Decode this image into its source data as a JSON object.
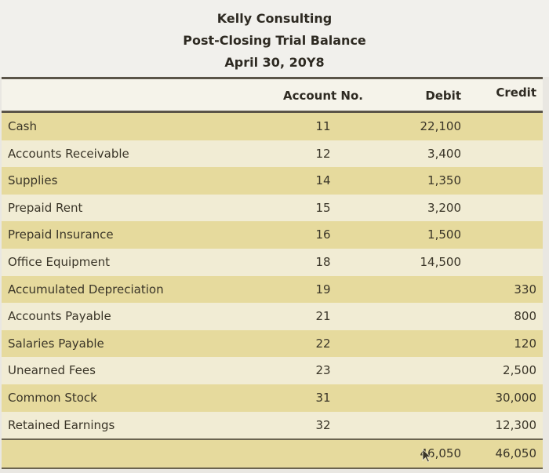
{
  "title": {
    "company": "Kelly Consulting",
    "report": "Post-Closing Trial Balance",
    "date": "April 30, 20Y8"
  },
  "columns": {
    "account_no": "Account No.",
    "debit": "Debit",
    "credit": "Credit"
  },
  "rows": [
    {
      "name": "Cash",
      "no": "11",
      "debit": "22,100",
      "credit": ""
    },
    {
      "name": "Accounts Receivable",
      "no": "12",
      "debit": "3,400",
      "credit": ""
    },
    {
      "name": "Supplies",
      "no": "14",
      "debit": "1,350",
      "credit": ""
    },
    {
      "name": "Prepaid Rent",
      "no": "15",
      "debit": "3,200",
      "credit": ""
    },
    {
      "name": "Prepaid Insurance",
      "no": "16",
      "debit": "1,500",
      "credit": ""
    },
    {
      "name": "Office Equipment",
      "no": "18",
      "debit": "14,500",
      "credit": ""
    },
    {
      "name": "Accumulated Depreciation",
      "no": "19",
      "debit": "",
      "credit": "330"
    },
    {
      "name": "Accounts Payable",
      "no": "21",
      "debit": "",
      "credit": "800"
    },
    {
      "name": "Salaries Payable",
      "no": "22",
      "debit": "",
      "credit": "120"
    },
    {
      "name": "Unearned Fees",
      "no": "23",
      "debit": "",
      "credit": "2,500"
    },
    {
      "name": "Common Stock",
      "no": "31",
      "debit": "",
      "credit": "30,000"
    },
    {
      "name": "Retained Earnings",
      "no": "32",
      "debit": "",
      "credit": "12,300"
    }
  ],
  "totals": {
    "debit": "46,050",
    "credit": "46,050"
  },
  "colors": {
    "row_highlight": "#e6da9d",
    "row_light": "#f1ecd4"
  },
  "icons": {
    "cursor": "mouse-pointer-icon"
  }
}
